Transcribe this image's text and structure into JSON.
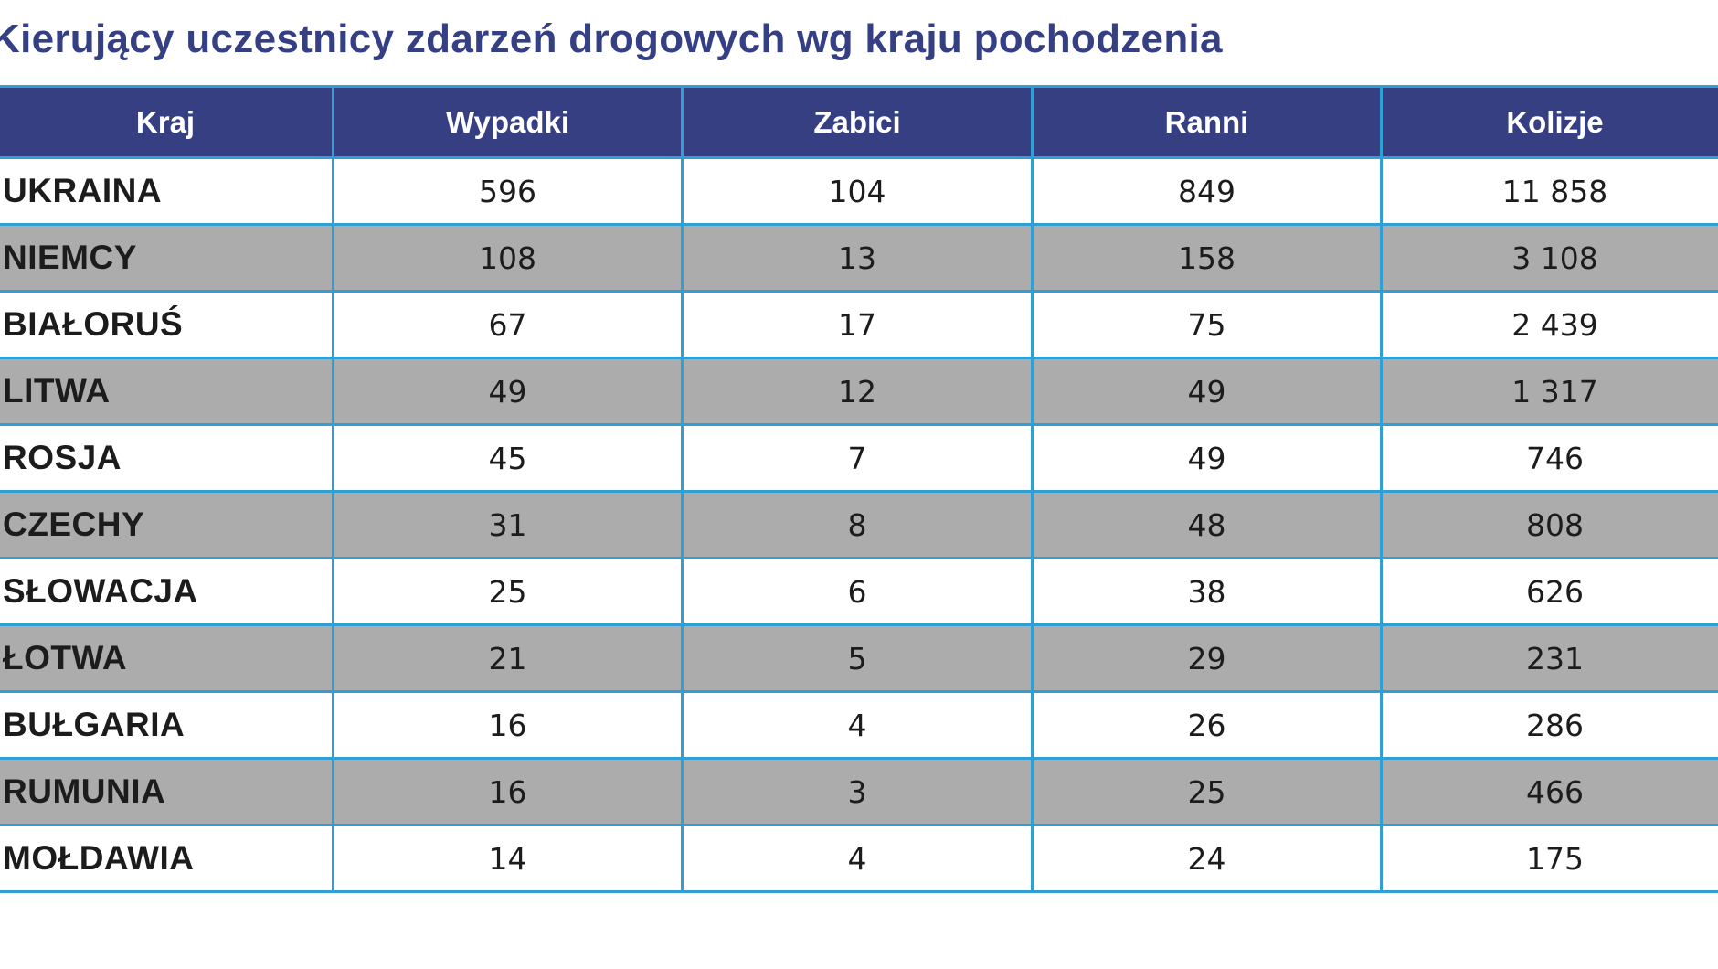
{
  "title": "Kierujący uczestnicy zdarzeń drogowych wg kraju pochodzenia",
  "table": {
    "headers": [
      "Kraj",
      "Wypadki",
      "Zabici",
      "Ranni",
      "Kolizje"
    ],
    "rows": [
      [
        "UKRAINA",
        "596",
        "104",
        "849",
        "11 858"
      ],
      [
        "NIEMCY",
        "108",
        "13",
        "158",
        "3 108"
      ],
      [
        "BIAŁORUŚ",
        "67",
        "17",
        "75",
        "2 439"
      ],
      [
        "LITWA",
        "49",
        "12",
        "49",
        "1 317"
      ],
      [
        "ROSJA",
        "45",
        "7",
        "49",
        "746"
      ],
      [
        "CZECHY",
        "31",
        "8",
        "48",
        "808"
      ],
      [
        "SŁOWACJA",
        "25",
        "6",
        "38",
        "626"
      ],
      [
        "ŁOTWA",
        "21",
        "5",
        "29",
        "231"
      ],
      [
        "BUŁGARIA",
        "16",
        "4",
        "26",
        "286"
      ],
      [
        "RUMUNIA",
        "16",
        "3",
        "25",
        "466"
      ],
      [
        "MOŁDAWIA",
        "14",
        "4",
        "24",
        "175"
      ]
    ]
  },
  "colors": {
    "title": "#353f84",
    "header_bg": "#363f82",
    "header_text": "#ffffff",
    "grid_line": "#2f9fd4",
    "row_alt_bg": "#acacac",
    "row_bg": "#ffffff"
  },
  "chart_data": {
    "type": "table",
    "title": "Kierujący uczestnicy zdarzeń drogowych wg kraju pochodzenia",
    "columns": [
      "Kraj",
      "Wypadki",
      "Zabici",
      "Ranni",
      "Kolizje"
    ],
    "rows": [
      {
        "Kraj": "UKRAINA",
        "Wypadki": 596,
        "Zabici": 104,
        "Ranni": 849,
        "Kolizje": 11858
      },
      {
        "Kraj": "NIEMCY",
        "Wypadki": 108,
        "Zabici": 13,
        "Ranni": 158,
        "Kolizje": 3108
      },
      {
        "Kraj": "BIAŁORUŚ",
        "Wypadki": 67,
        "Zabici": 17,
        "Ranni": 75,
        "Kolizje": 2439
      },
      {
        "Kraj": "LITWA",
        "Wypadki": 49,
        "Zabici": 12,
        "Ranni": 49,
        "Kolizje": 1317
      },
      {
        "Kraj": "ROSJA",
        "Wypadki": 45,
        "Zabici": 7,
        "Ranni": 49,
        "Kolizje": 746
      },
      {
        "Kraj": "CZECHY",
        "Wypadki": 31,
        "Zabici": 8,
        "Ranni": 48,
        "Kolizje": 808
      },
      {
        "Kraj": "SŁOWACJA",
        "Wypadki": 25,
        "Zabici": 6,
        "Ranni": 38,
        "Kolizje": 626
      },
      {
        "Kraj": "ŁOTWA",
        "Wypadki": 21,
        "Zabici": 5,
        "Ranni": 29,
        "Kolizje": 231
      },
      {
        "Kraj": "BUŁGARIA",
        "Wypadki": 16,
        "Zabici": 4,
        "Ranni": 26,
        "Kolizje": 286
      },
      {
        "Kraj": "RUMUNIA",
        "Wypadki": 16,
        "Zabici": 3,
        "Ranni": 25,
        "Kolizje": 466
      },
      {
        "Kraj": "MOŁDAWIA",
        "Wypadki": 14,
        "Zabici": 4,
        "Ranni": 24,
        "Kolizje": 175
      }
    ]
  }
}
